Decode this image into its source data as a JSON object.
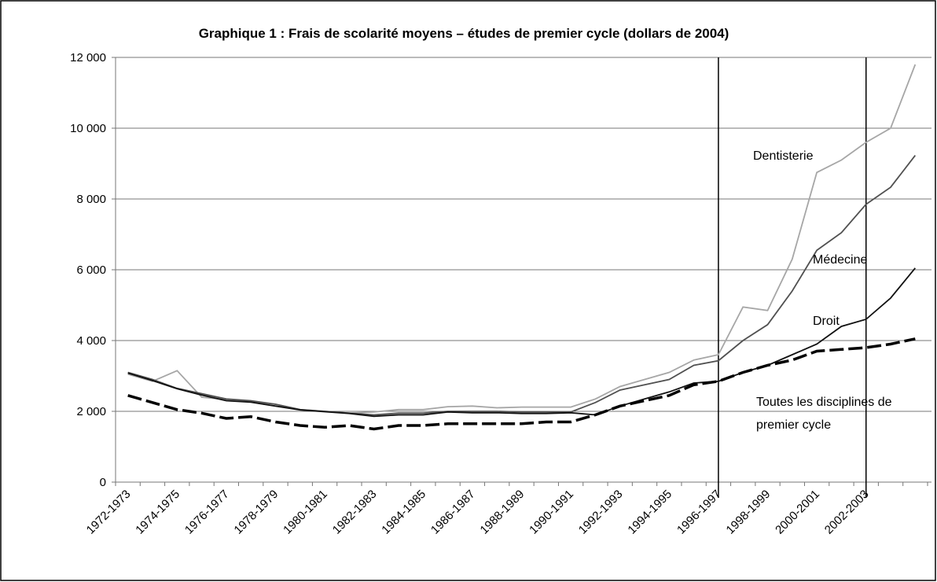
{
  "chart_data": {
    "type": "line",
    "title": "Graphique 1 : Frais de scolarité moyens – études de premier cycle (dollars de 2004)",
    "categories": [
      "1972-1973",
      null,
      "1974-1975",
      null,
      "1976-1977",
      null,
      "1978-1979",
      null,
      "1980-1981",
      null,
      "1982-1983",
      null,
      "1984-1985",
      null,
      "1986-1987",
      null,
      "1988-1989",
      null,
      "1990-1991",
      null,
      "1992-1993",
      null,
      "1994-1995",
      null,
      "1996-1997",
      null,
      "1998-1999",
      null,
      "2000-2001",
      null,
      "2002-2003",
      null,
      null
    ],
    "series": [
      {
        "name": "Dentisterie",
        "color": "#a6a6a6",
        "dashed": false,
        "values": [
          3050,
          2850,
          3150,
          2400,
          2330,
          2280,
          2200,
          2050,
          2000,
          1950,
          1980,
          2050,
          2050,
          2130,
          2150,
          2100,
          2120,
          2120,
          2120,
          2350,
          2700,
          2900,
          3100,
          3450,
          3600,
          4950,
          4850,
          6300,
          8750,
          9100,
          9600,
          10000,
          11800
        ]
      },
      {
        "name": "Médecine",
        "color": "#505050",
        "dashed": false,
        "values": [
          3100,
          2900,
          2650,
          2500,
          2350,
          2300,
          2200,
          2050,
          2000,
          1950,
          1900,
          1950,
          1950,
          2000,
          2000,
          2000,
          1980,
          1980,
          1980,
          2250,
          2600,
          2750,
          2900,
          3300,
          3430,
          4000,
          4450,
          5400,
          6550,
          7050,
          7850,
          8330,
          9230
        ]
      },
      {
        "name": "Droit",
        "color": "#111111",
        "dashed": false,
        "values": [
          3080,
          2870,
          2640,
          2460,
          2300,
          2260,
          2150,
          2040,
          1990,
          1940,
          1860,
          1900,
          1900,
          1980,
          1960,
          1960,
          1940,
          1940,
          1960,
          1900,
          2150,
          2350,
          2550,
          2800,
          2850,
          3100,
          3300,
          3600,
          3900,
          4400,
          4600,
          5200,
          6050
        ]
      },
      {
        "name": "Toutes les disciplines de premier cycle",
        "color": "#000000",
        "dashed": true,
        "values": [
          2450,
          2250,
          2050,
          1950,
          1800,
          1850,
          1700,
          1600,
          1550,
          1600,
          1500,
          1600,
          1600,
          1650,
          1650,
          1650,
          1650,
          1700,
          1700,
          1900,
          2150,
          2300,
          2450,
          2750,
          2850,
          3100,
          3300,
          3450,
          3700,
          3750,
          3800,
          3900,
          4050
        ]
      }
    ],
    "vlines": [
      24,
      30
    ],
    "ylim": [
      0,
      12000
    ],
    "yticks": [
      0,
      {
        "value": 2000,
        "label": "2 000"
      },
      {
        "value": 4000,
        "label": "4 000"
      },
      {
        "value": 6000,
        "label": "6 000"
      },
      {
        "value": 8000,
        "label": "8 000"
      },
      {
        "value": 10000,
        "label": "10 000"
      },
      {
        "value": 12000,
        "label": "12 000"
      }
    ],
    "grid": true
  }
}
